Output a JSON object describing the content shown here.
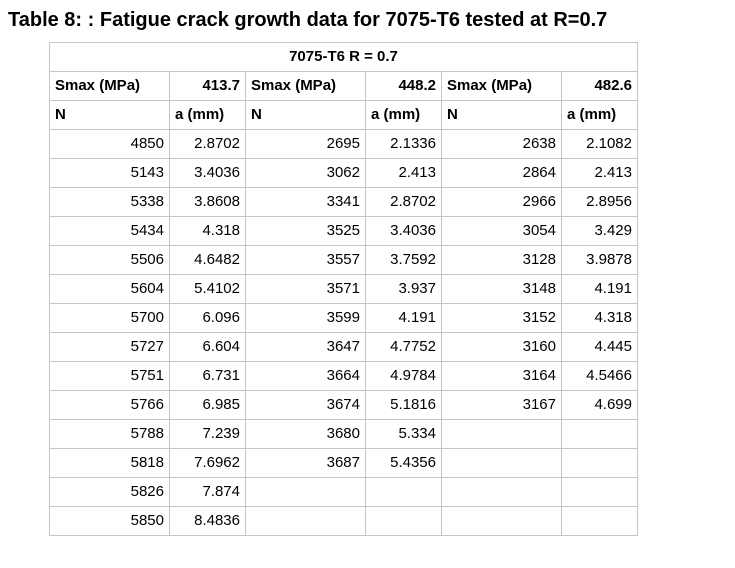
{
  "title": "Table 8: : Fatigue crack growth data for 7075-T6 tested at R=0.7",
  "table": {
    "merged_header": "7075-T6 R = 0.7",
    "header_values": [
      "Smax (MPa)",
      "413.7",
      "Smax (MPa)",
      "448.2",
      "Smax (MPa)",
      "482.6"
    ],
    "subheader_values": [
      "N",
      "a (mm)",
      "N",
      "a (mm)",
      "N",
      "a (mm)"
    ],
    "rows": [
      [
        "4850",
        "2.8702",
        "2695",
        "2.1336",
        "2638",
        "2.1082"
      ],
      [
        "5143",
        "3.4036",
        "3062",
        "2.413",
        "2864",
        "2.413"
      ],
      [
        "5338",
        "3.8608",
        "3341",
        "2.8702",
        "2966",
        "2.8956"
      ],
      [
        "5434",
        "4.318",
        "3525",
        "3.4036",
        "3054",
        "3.429"
      ],
      [
        "5506",
        "4.6482",
        "3557",
        "3.7592",
        "3128",
        "3.9878"
      ],
      [
        "5604",
        "5.4102",
        "3571",
        "3.937",
        "3148",
        "4.191"
      ],
      [
        "5700",
        "6.096",
        "3599",
        "4.191",
        "3152",
        "4.318"
      ],
      [
        "5727",
        "6.604",
        "3647",
        "4.7752",
        "3160",
        "4.445"
      ],
      [
        "5751",
        "6.731",
        "3664",
        "4.9784",
        "3164",
        "4.5466"
      ],
      [
        "5766",
        "6.985",
        "3674",
        "5.1816",
        "3167",
        "4.699"
      ],
      [
        "5788",
        "7.239",
        "3680",
        "5.334",
        "",
        ""
      ],
      [
        "5818",
        "7.6962",
        "3687",
        "5.4356",
        "",
        ""
      ],
      [
        "5826",
        "7.874",
        "",
        "",
        "",
        ""
      ],
      [
        "5850",
        "8.4836",
        "",
        "",
        "",
        ""
      ]
    ]
  },
  "colors": {
    "gridline": "#c6c6c6",
    "text": "#000000",
    "background": "#ffffff"
  },
  "chart_data": {
    "type": "table",
    "title": "7075-T6 R = 0.7",
    "series": [
      {
        "name": "Smax (MPa) = 413.7",
        "x_label": "N",
        "y_label": "a (mm)",
        "N": [
          4850,
          5143,
          5338,
          5434,
          5506,
          5604,
          5700,
          5727,
          5751,
          5766,
          5788,
          5818,
          5826,
          5850
        ],
        "a_mm": [
          2.8702,
          3.4036,
          3.8608,
          4.318,
          4.6482,
          5.4102,
          6.096,
          6.604,
          6.731,
          6.985,
          7.239,
          7.6962,
          7.874,
          8.4836
        ]
      },
      {
        "name": "Smax (MPa) = 448.2",
        "x_label": "N",
        "y_label": "a (mm)",
        "N": [
          2695,
          3062,
          3341,
          3525,
          3557,
          3571,
          3599,
          3647,
          3664,
          3674,
          3680,
          3687
        ],
        "a_mm": [
          2.1336,
          2.413,
          2.8702,
          3.4036,
          3.7592,
          3.937,
          4.191,
          4.7752,
          4.9784,
          5.1816,
          5.334,
          5.4356
        ]
      },
      {
        "name": "Smax (MPa) = 482.6",
        "x_label": "N",
        "y_label": "a (mm)",
        "N": [
          2638,
          2864,
          2966,
          3054,
          3128,
          3148,
          3152,
          3160,
          3164,
          3167
        ],
        "a_mm": [
          2.1082,
          2.413,
          2.8956,
          3.429,
          3.9878,
          4.191,
          4.318,
          4.445,
          4.5466,
          4.699
        ]
      }
    ]
  }
}
